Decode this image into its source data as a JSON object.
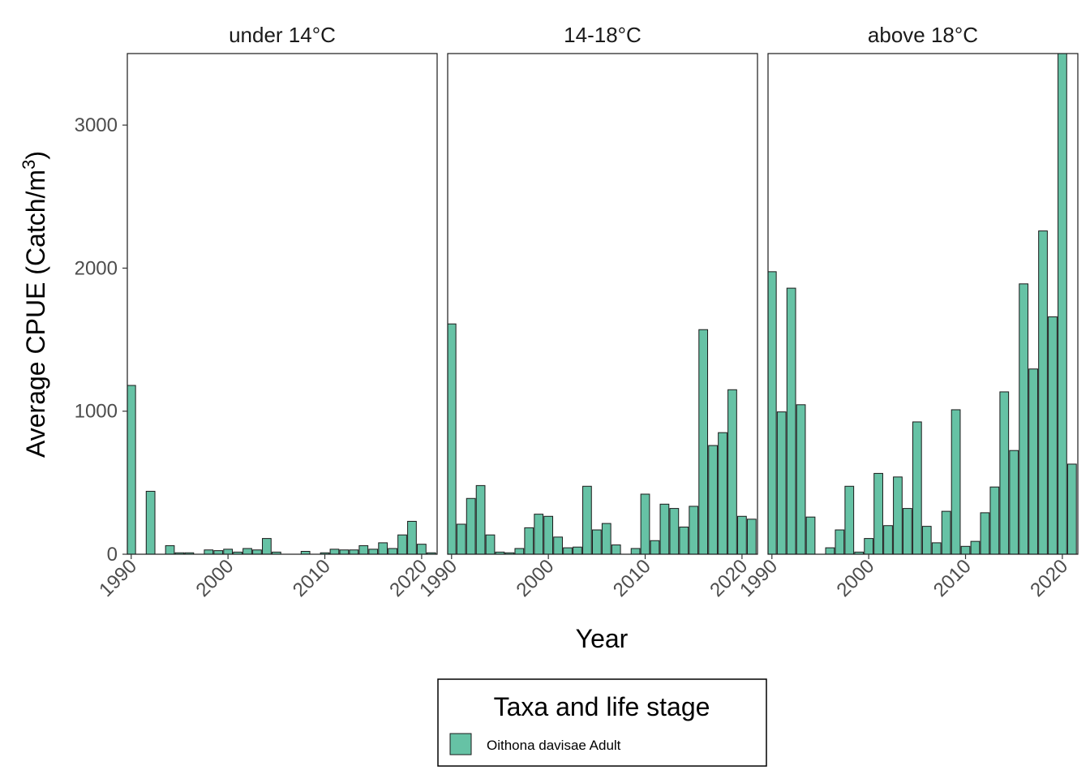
{
  "chart_data": {
    "type": "bar",
    "xlabel": "Year",
    "ylabel": "Average CPUE (Catch/m",
    "ylabel_superscript": "3",
    "ylabel_suffix": ")",
    "ylim": [
      0,
      3500
    ],
    "yticks": [
      0,
      1000,
      2000,
      3000
    ],
    "xlim": [
      1989.6,
      2021.6
    ],
    "xticks": [
      1990,
      2000,
      2010,
      2020
    ],
    "grid": false,
    "legend": {
      "title": "Taxa and life stage",
      "position": "bottom",
      "entries": [
        {
          "label": "Oithona davisae Adult",
          "color": "#66C2A5"
        }
      ]
    },
    "bar_color": "#66C2A5",
    "bar_edge_color": "#1a1a1a",
    "panels": [
      {
        "title": "under 14°C",
        "x": [
          1990,
          1992,
          1994,
          1995,
          1996,
          1998,
          1999,
          2000,
          2001,
          2002,
          2003,
          2004,
          2005,
          2008,
          2010,
          2011,
          2012,
          2013,
          2014,
          2015,
          2016,
          2017,
          2018,
          2019,
          2020,
          2021
        ],
        "values": [
          1180,
          440,
          60,
          10,
          10,
          30,
          25,
          35,
          15,
          40,
          30,
          110,
          15,
          20,
          10,
          35,
          30,
          30,
          60,
          35,
          80,
          40,
          135,
          230,
          70,
          10
        ]
      },
      {
        "title": "14-18°C",
        "x": [
          1990,
          1991,
          1992,
          1993,
          1994,
          1995,
          1996,
          1997,
          1998,
          1999,
          2000,
          2001,
          2002,
          2003,
          2004,
          2005,
          2006,
          2007,
          2009,
          2010,
          2011,
          2012,
          2013,
          2014,
          2015,
          2016,
          2017,
          2018,
          2019,
          2020,
          2021
        ],
        "values": [
          1610,
          210,
          390,
          480,
          135,
          15,
          10,
          40,
          185,
          280,
          265,
          120,
          45,
          50,
          475,
          170,
          215,
          65,
          40,
          420,
          95,
          350,
          320,
          190,
          335,
          1570,
          760,
          850,
          1150,
          265,
          245
        ]
      },
      {
        "title": "above 18°C",
        "x": [
          1990,
          1991,
          1992,
          1993,
          1994,
          1996,
          1997,
          1998,
          1999,
          2000,
          2001,
          2002,
          2003,
          2004,
          2005,
          2006,
          2007,
          2008,
          2009,
          2010,
          2011,
          2012,
          2013,
          2014,
          2015,
          2016,
          2017,
          2018,
          2019,
          2020,
          2021
        ],
        "values": [
          1975,
          995,
          1860,
          1045,
          260,
          45,
          170,
          475,
          15,
          110,
          565,
          200,
          540,
          320,
          925,
          195,
          80,
          300,
          1010,
          55,
          90,
          290,
          470,
          1135,
          725,
          1890,
          1295,
          2260,
          1660,
          3510,
          630
        ]
      }
    ]
  }
}
